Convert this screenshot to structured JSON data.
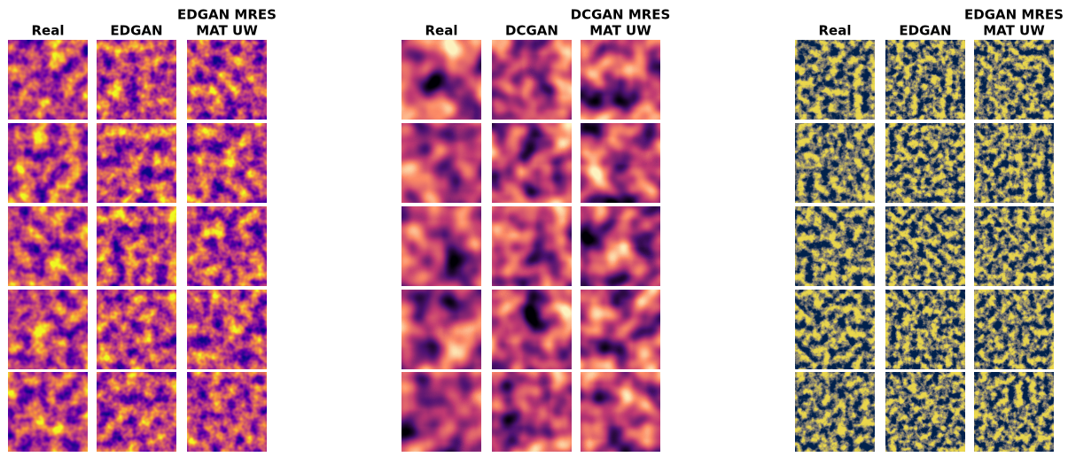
{
  "panels": [
    {
      "columns": [
        {
          "lines": [
            "Real"
          ]
        },
        {
          "lines": [
            "EDGAN"
          ]
        },
        {
          "lines": [
            "EDGAN MRES",
            "MAT UW"
          ]
        }
      ]
    },
    {
      "columns": [
        {
          "lines": [
            "Real"
          ]
        },
        {
          "lines": [
            "DCGAN"
          ]
        },
        {
          "lines": [
            "DCGAN MRES",
            "MAT UW"
          ]
        }
      ]
    },
    {
      "columns": [
        {
          "lines": [
            "Real"
          ]
        },
        {
          "lines": [
            "EDGAN"
          ]
        },
        {
          "lines": [
            "EDGAN MRES",
            "MAT UW"
          ]
        }
      ]
    }
  ]
}
